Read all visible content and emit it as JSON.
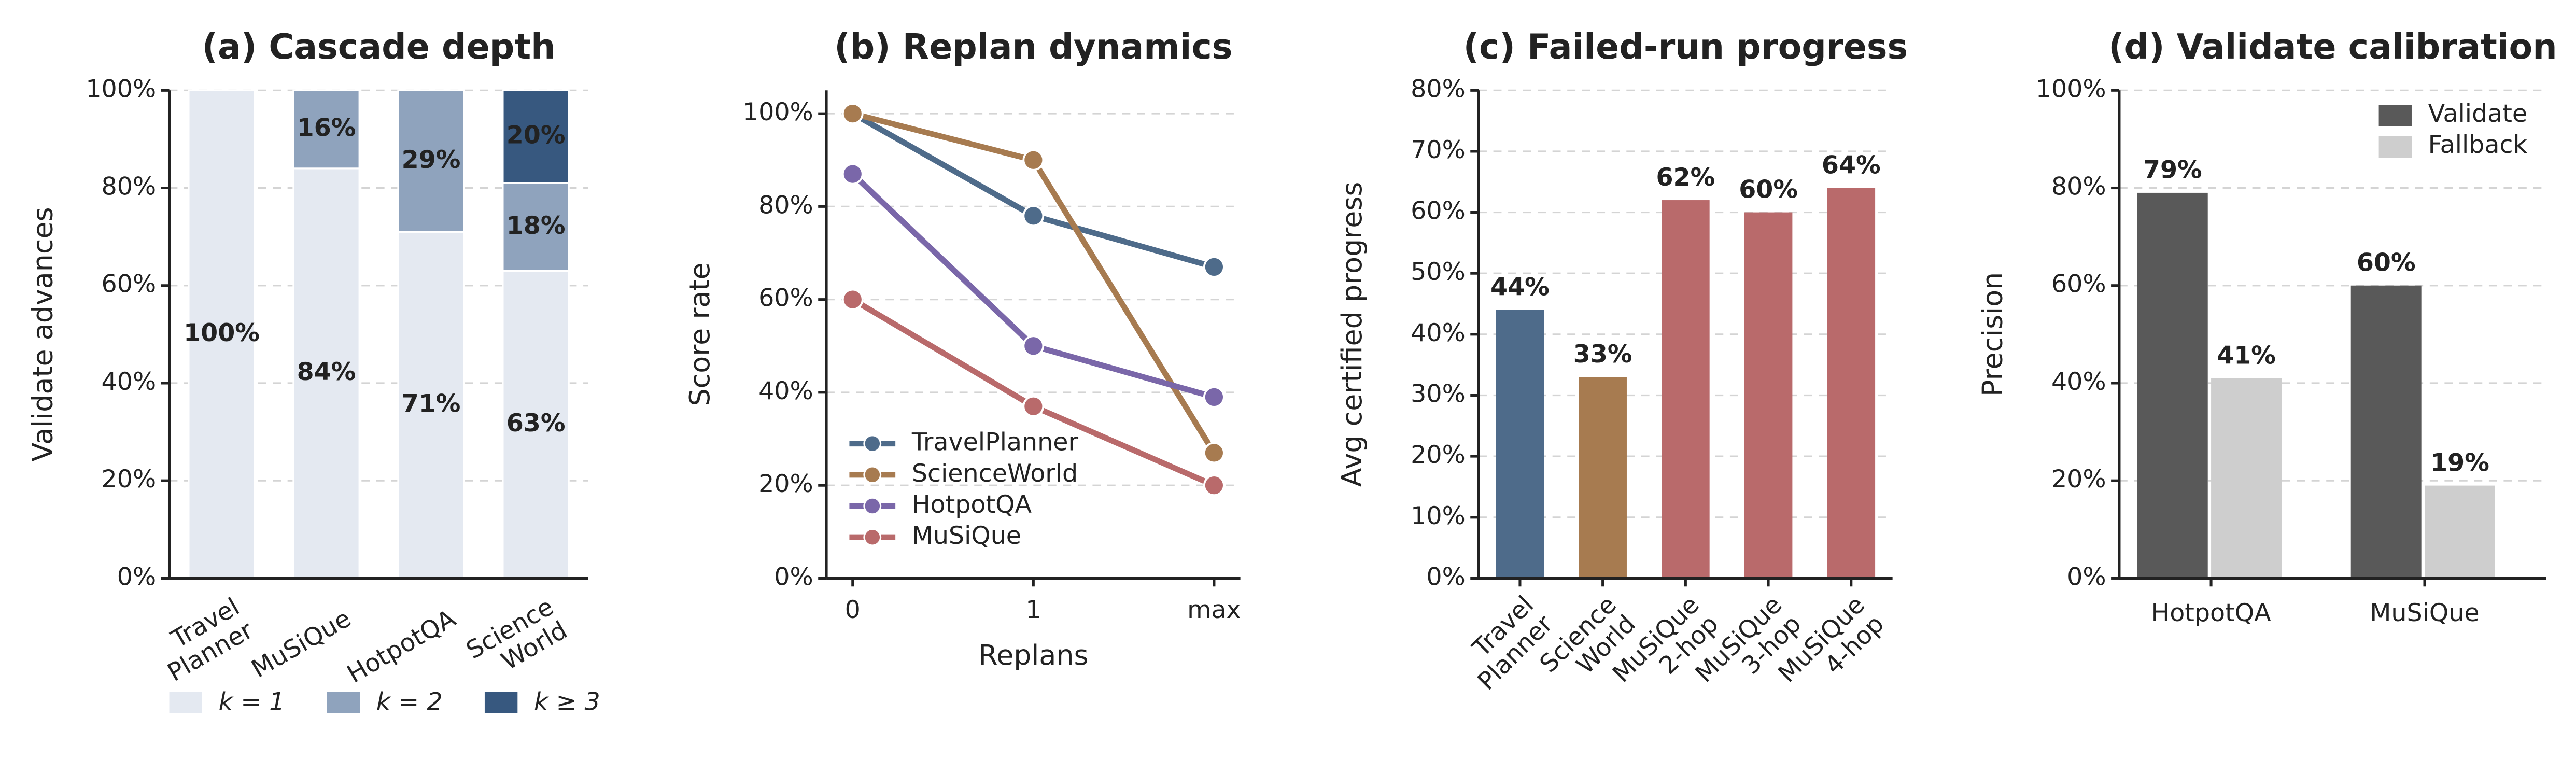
{
  "chart_data": [
    {
      "type": "stacked_bar",
      "title": "(a) Cascade depth",
      "ylabel": "Validate advances",
      "categories": [
        "Travel\nPlanner",
        "MuSiQue",
        "HotpotQA",
        "Science\nWorld"
      ],
      "series": [
        {
          "name": "k = 1",
          "color": "#e4e9f1",
          "values": [
            100,
            84,
            71,
            63
          ],
          "value_labels": [
            "100%",
            "84%",
            "71%",
            "63%"
          ]
        },
        {
          "name": "k = 2",
          "color": "#8fa3bd",
          "values": [
            null,
            16,
            29,
            18
          ],
          "value_labels": [
            null,
            "16%",
            "29%",
            "18%"
          ]
        },
        {
          "name": "k ≥ 3",
          "color": "#37587f",
          "values": [
            null,
            null,
            null,
            20
          ],
          "value_labels": [
            null,
            null,
            null,
            "20%"
          ]
        }
      ],
      "ylim": [
        0,
        100
      ],
      "yticks": [
        {
          "value": 0,
          "label": "0%"
        },
        {
          "value": 20,
          "label": "20%"
        },
        {
          "value": 40,
          "label": "40%"
        },
        {
          "value": 60,
          "label": "60%"
        },
        {
          "value": 80,
          "label": "80%"
        },
        {
          "value": 100,
          "label": "100%"
        }
      ],
      "grid": true,
      "legend": "bottom"
    },
    {
      "type": "line",
      "title": "(b) Replan dynamics",
      "xlabel": "Replans",
      "ylabel": "Score rate",
      "categories": [
        "0",
        "1",
        "max"
      ],
      "series": [
        {
          "name": "TravelPlanner",
          "color": "#4e6b8a",
          "values": [
            100,
            78,
            67
          ]
        },
        {
          "name": "ScienceWorld",
          "color": "#a77b50",
          "values": [
            100,
            90,
            27
          ]
        },
        {
          "name": "HotpotQA",
          "color": "#7a67a9",
          "values": [
            87,
            50,
            39
          ]
        },
        {
          "name": "MuSiQue",
          "color": "#b96a6b",
          "values": [
            60,
            37,
            20
          ]
        }
      ],
      "ylim": [
        0,
        105
      ],
      "yticks": [
        {
          "value": 0,
          "label": "0%"
        },
        {
          "value": 20,
          "label": "20%"
        },
        {
          "value": 40,
          "label": "40%"
        },
        {
          "value": 60,
          "label": "60%"
        },
        {
          "value": 80,
          "label": "80%"
        },
        {
          "value": 100,
          "label": "100%"
        }
      ],
      "grid": true,
      "legend": "lower left"
    },
    {
      "type": "bar",
      "title": "(c) Failed-run progress",
      "ylabel": "Avg certified progress",
      "categories": [
        "Travel\nPlanner",
        "Science\nWorld",
        "MuSiQue\n2-hop",
        "MuSiQue\n3-hop",
        "MuSiQue\n4-hop"
      ],
      "values": [
        44,
        33,
        62,
        60,
        64
      ],
      "value_labels": [
        "44%",
        "33%",
        "62%",
        "60%",
        "64%"
      ],
      "colors": [
        "#4e6b8a",
        "#a77b50",
        "#b96a6b",
        "#b96a6b",
        "#b96a6b"
      ],
      "ylim": [
        0,
        80
      ],
      "yticks": [
        {
          "value": 0,
          "label": "0%"
        },
        {
          "value": 10,
          "label": "10%"
        },
        {
          "value": 20,
          "label": "20%"
        },
        {
          "value": 30,
          "label": "30%"
        },
        {
          "value": 40,
          "label": "40%"
        },
        {
          "value": 50,
          "label": "50%"
        },
        {
          "value": 60,
          "label": "60%"
        },
        {
          "value": 70,
          "label": "70%"
        },
        {
          "value": 80,
          "label": "80%"
        }
      ],
      "grid": true
    },
    {
      "type": "grouped_bar",
      "title": "(d) Validate calibration",
      "ylabel": "Precision",
      "categories": [
        "HotpotQA",
        "MuSiQue"
      ],
      "series": [
        {
          "name": "Validate",
          "color": "#595959",
          "values": [
            79,
            60
          ],
          "value_labels": [
            "79%",
            "60%"
          ]
        },
        {
          "name": "Fallback",
          "color": "#cecece",
          "values": [
            41,
            19
          ],
          "value_labels": [
            "41%",
            "19%"
          ]
        }
      ],
      "ylim": [
        0,
        100
      ],
      "yticks": [
        {
          "value": 0,
          "label": "0%"
        },
        {
          "value": 20,
          "label": "20%"
        },
        {
          "value": 40,
          "label": "40%"
        },
        {
          "value": 60,
          "label": "60%"
        },
        {
          "value": 80,
          "label": "80%"
        },
        {
          "value": 100,
          "label": "100%"
        }
      ],
      "grid": true,
      "legend": "upper right"
    }
  ]
}
